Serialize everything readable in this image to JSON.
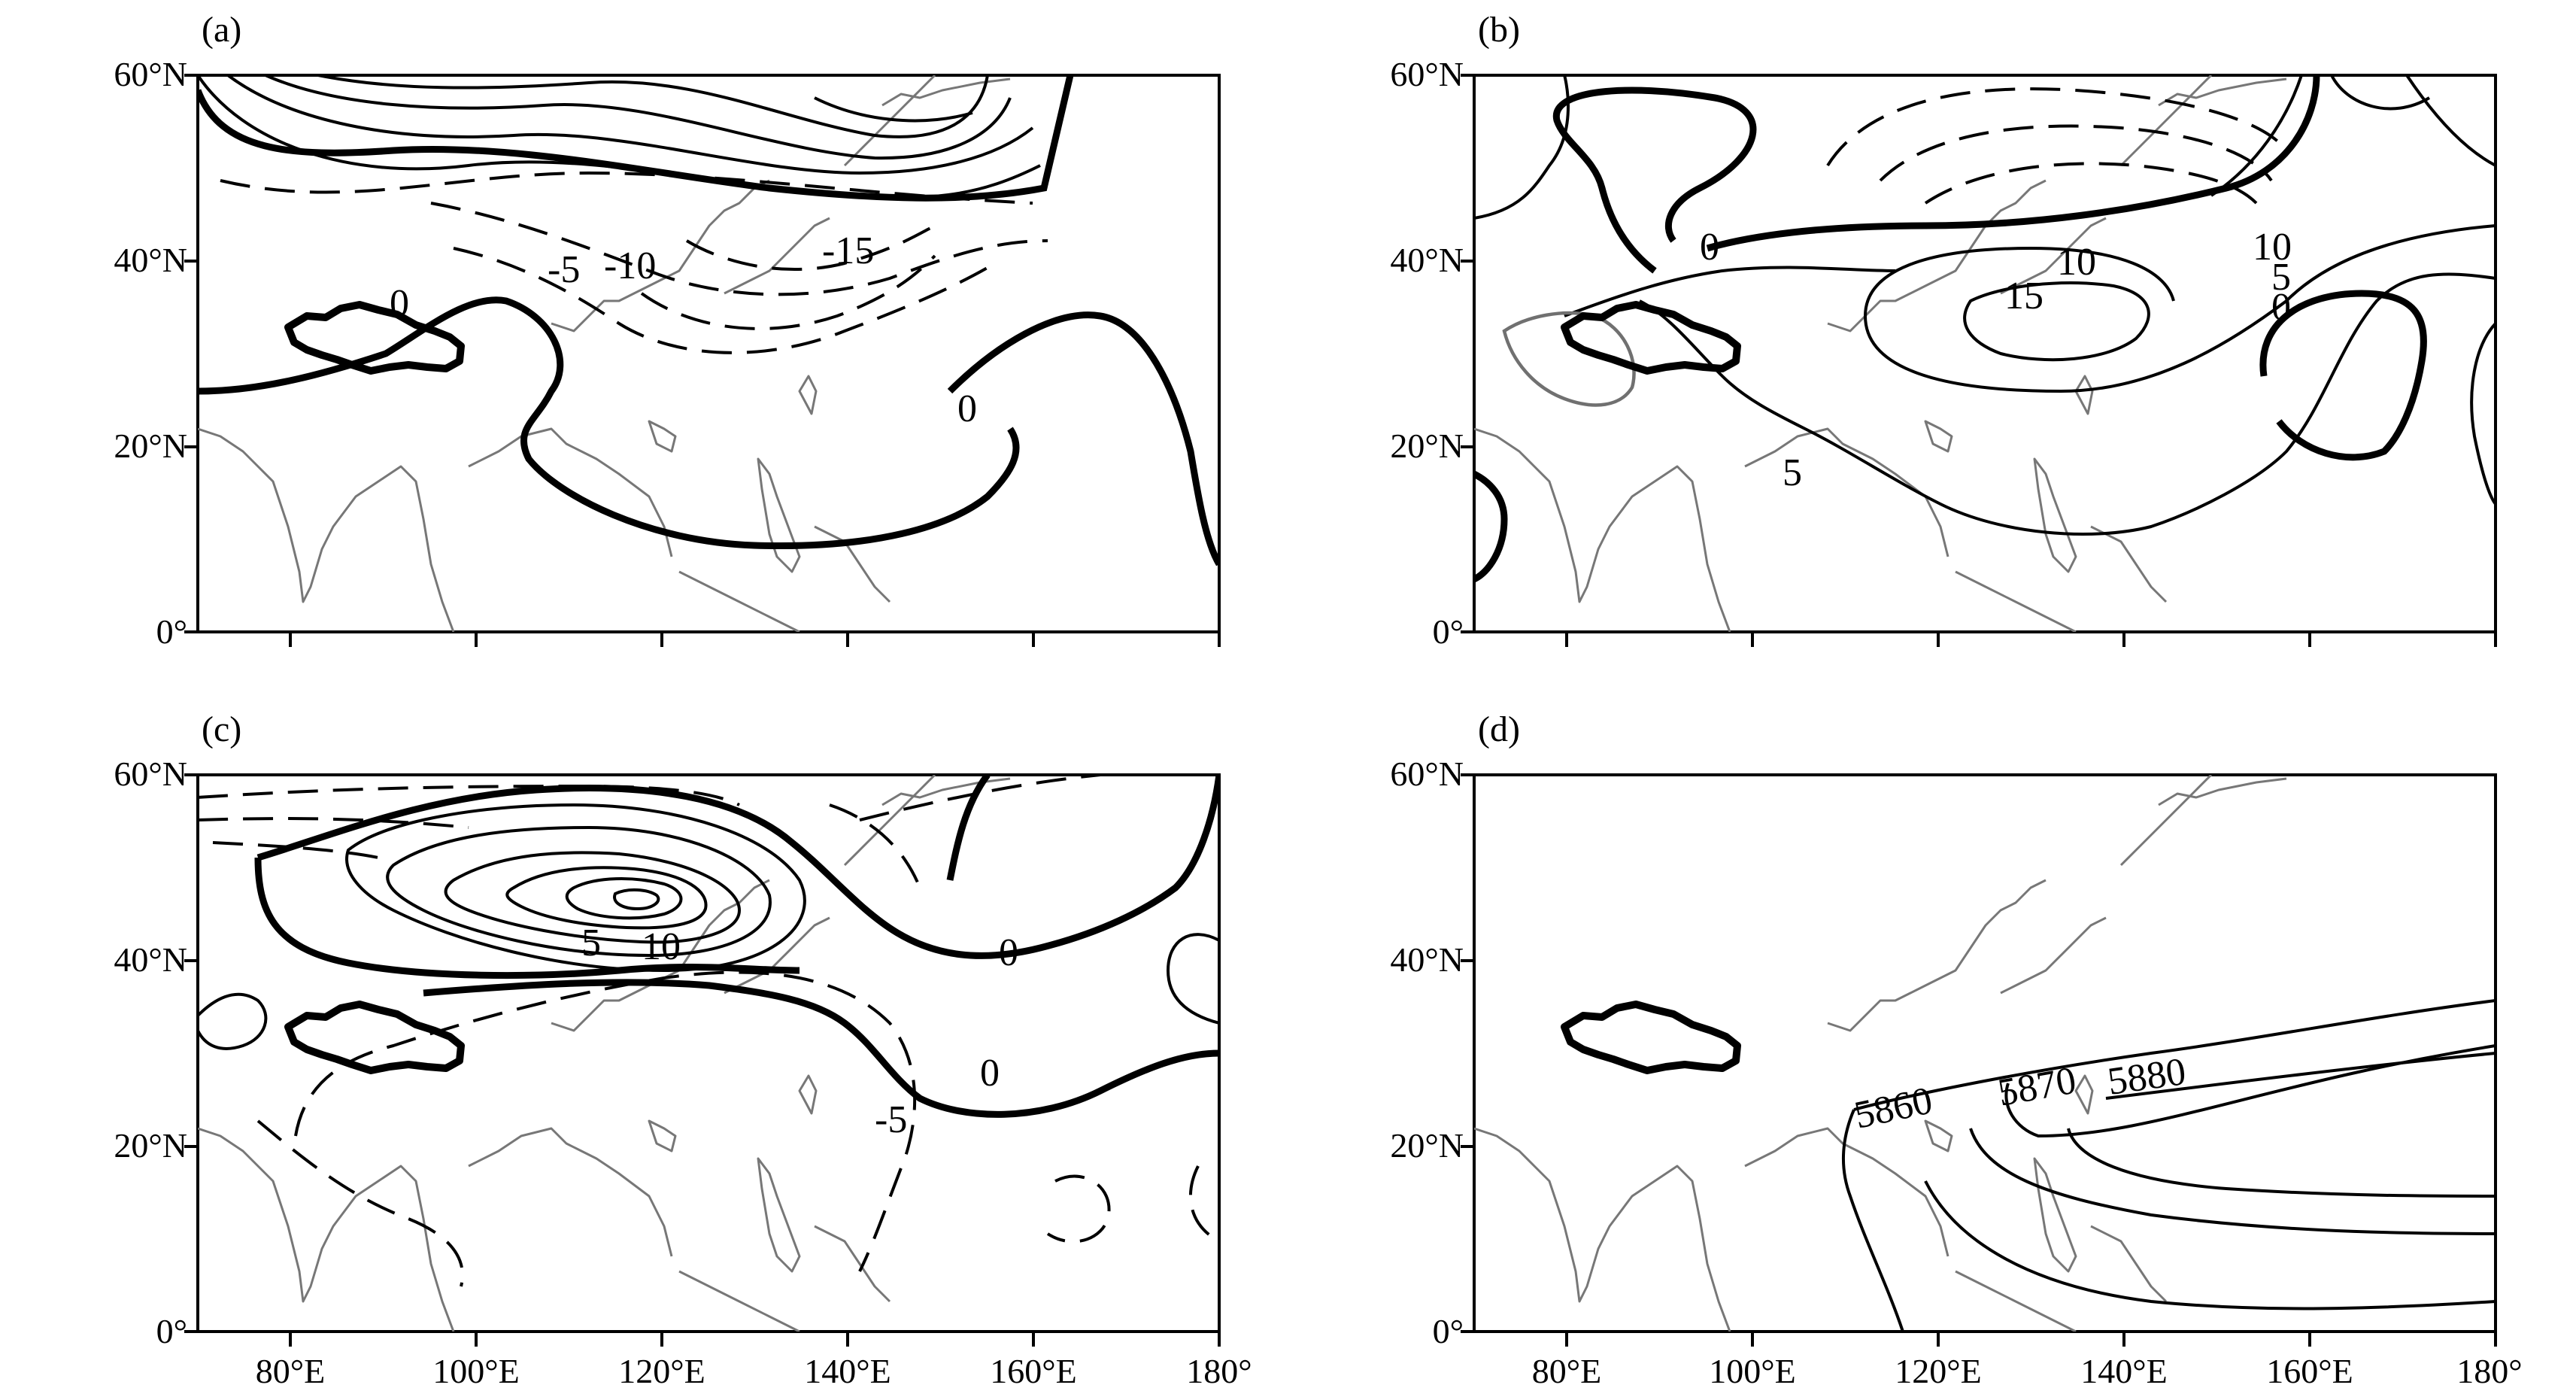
{
  "figure": {
    "panels": [
      {
        "id": "a",
        "label": "(a)",
        "y_ticks": [
          "60°N",
          "40°N",
          "20°N",
          "0°"
        ],
        "x_ticks": [],
        "contour_labels": [
          "-5",
          "-10",
          "-15",
          "0",
          "0"
        ],
        "plateau_outline": true
      },
      {
        "id": "b",
        "label": "(b)",
        "y_ticks": [
          "60°N",
          "40°N",
          "20°N",
          "0°"
        ],
        "x_ticks": [],
        "contour_labels": [
          "0",
          "10",
          "15",
          "10",
          "5",
          "0",
          "5"
        ],
        "plateau_outline": true
      },
      {
        "id": "c",
        "label": "(c)",
        "y_ticks": [
          "60°N",
          "40°N",
          "20°N",
          "0°"
        ],
        "x_ticks": [
          "80°E",
          "100°E",
          "120°E",
          "140°E",
          "160°E",
          "180°"
        ],
        "contour_labels": [
          "5",
          "10",
          "0",
          "0",
          "-5"
        ],
        "plateau_outline": true
      },
      {
        "id": "d",
        "label": "(d)",
        "y_ticks": [
          "60°N",
          "40°N",
          "20°N",
          "0°"
        ],
        "x_ticks": [
          "80°E",
          "100°E",
          "120°E",
          "140°E",
          "160°E",
          "180°"
        ],
        "contour_labels": [
          "5860",
          "5870",
          "5880"
        ],
        "plateau_outline": true
      }
    ],
    "lat_range": [
      "0°",
      "60°N"
    ],
    "lon_range": [
      "70°E",
      "180°"
    ],
    "colors": {
      "lines": "#000000",
      "coastline": "#777777",
      "extra_contour": "#707070"
    }
  }
}
